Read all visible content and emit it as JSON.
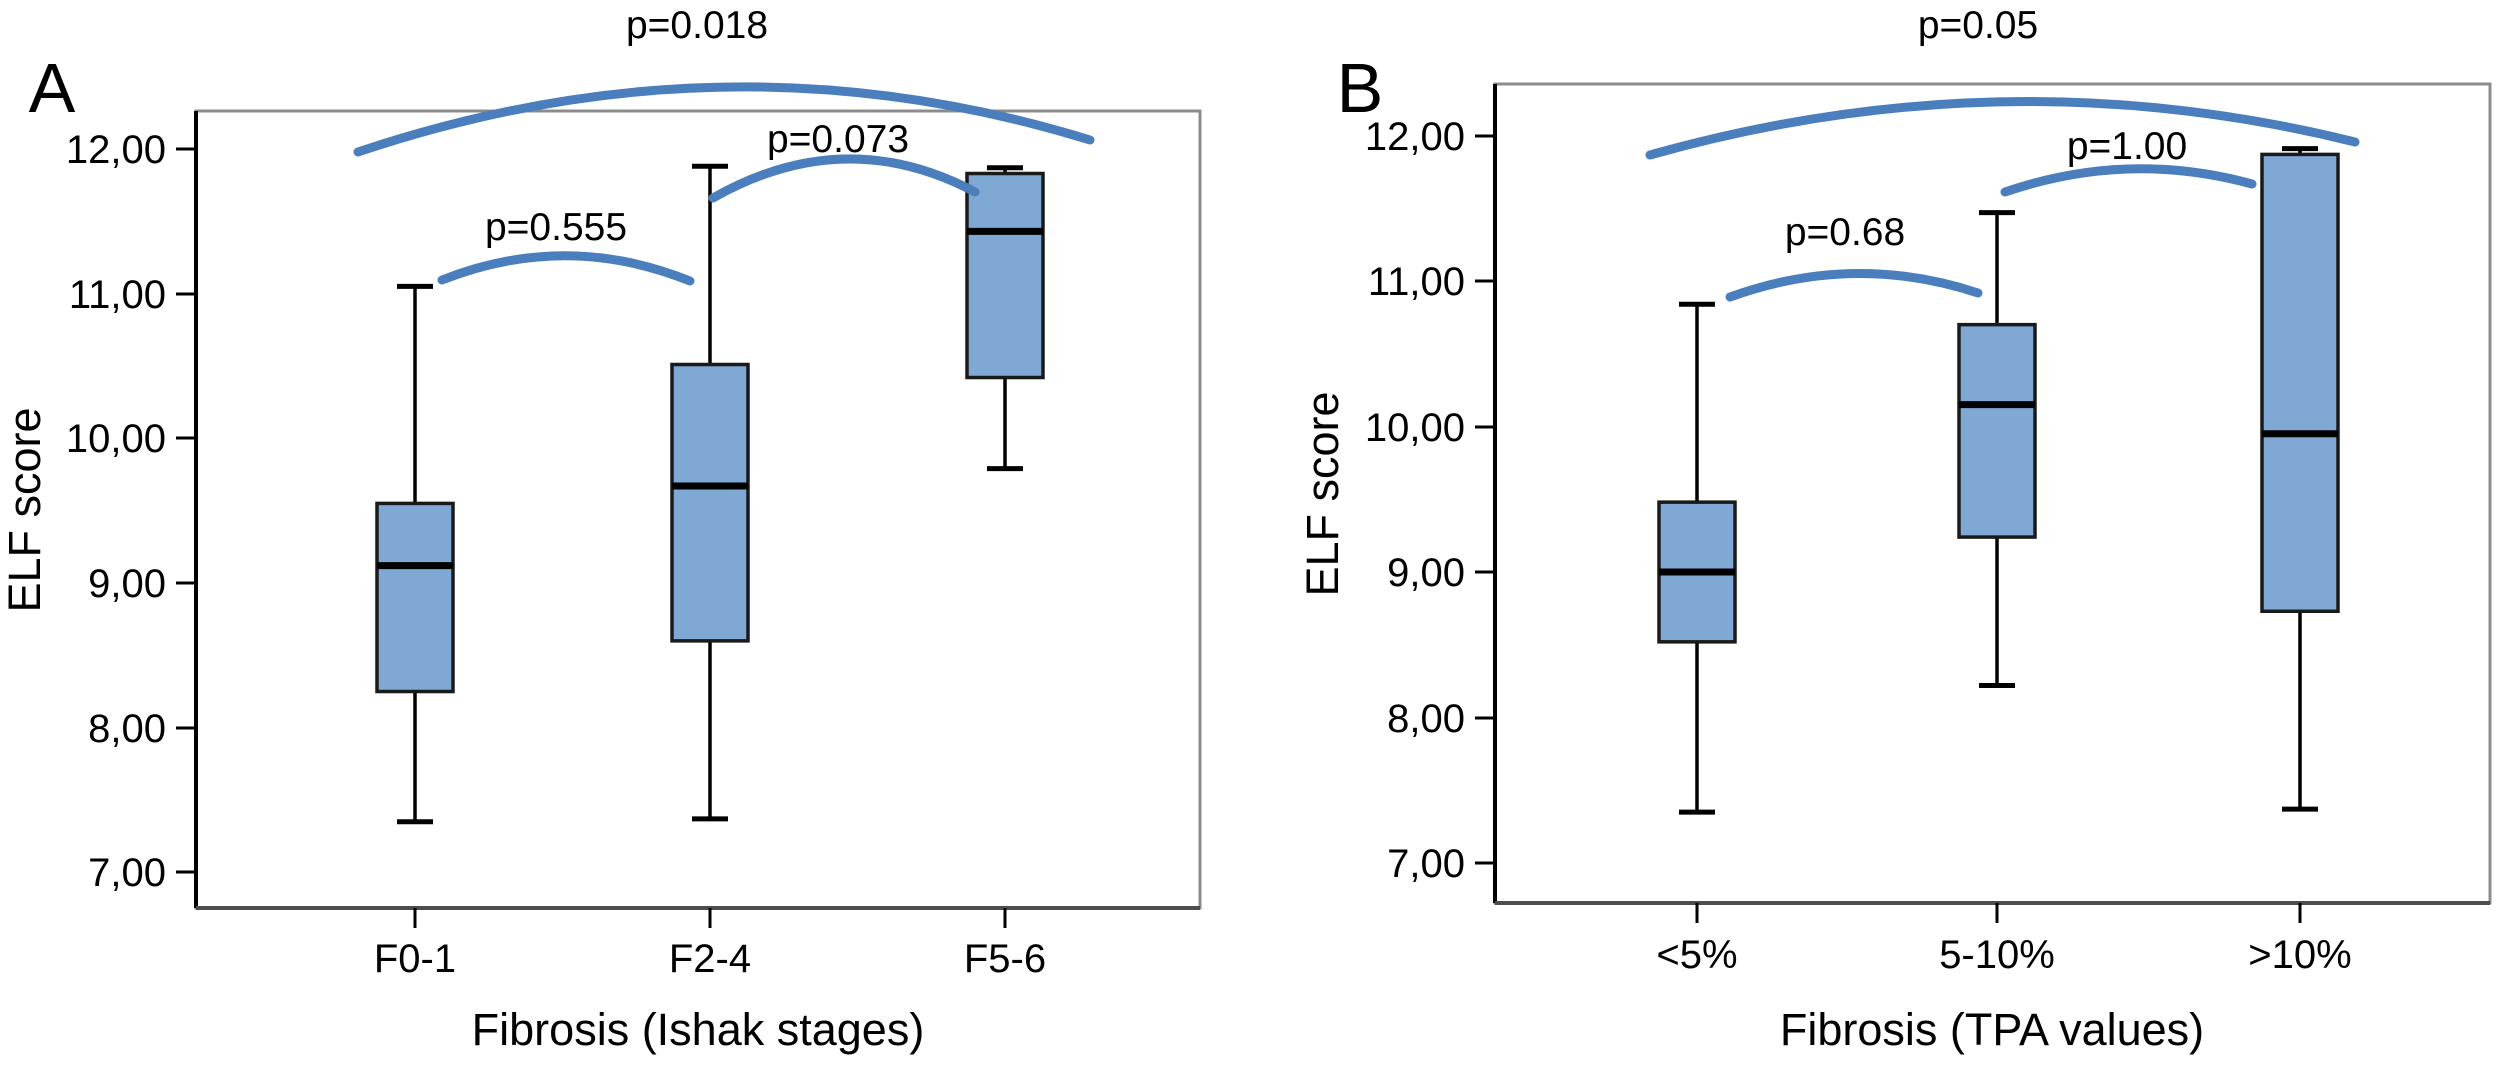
{
  "figure": {
    "background": "#ffffff",
    "colors": {
      "box_fill": "#7FA8D4",
      "box_border": "#1a1a1a",
      "median_line": "#000000",
      "bracket_blue": "#4B7EBD",
      "frame_gray": "#8c8c8c",
      "axis_black": "#000000"
    }
  },
  "chart_data": [
    {
      "type": "box",
      "panel_letter": "A",
      "overall_p": "p=0.018",
      "ylabel": "ELF score",
      "xlabel": "Fibrosis (Ishak stages)",
      "ylim": [
        6.6,
        12.45
      ],
      "yticks": [
        12,
        11,
        10,
        9,
        8,
        7
      ],
      "ytick_labels": [
        "12,00",
        "11,00",
        "10,00",
        "9,00",
        "8,00",
        "7,00"
      ],
      "categories": [
        "F0-1",
        "F2-4",
        "F5-6"
      ],
      "boxes": [
        {
          "category": "F0-1",
          "whisker_low": 7.35,
          "q1": 8.25,
          "median": 9.12,
          "q3": 9.55,
          "whisker_high": 11.05
        },
        {
          "category": "F2-4",
          "whisker_low": 7.37,
          "q1": 8.6,
          "median": 9.67,
          "q3": 10.51,
          "whisker_high": 11.88
        },
        {
          "category": "F5-6",
          "whisker_low": 9.79,
          "q1": 10.42,
          "median": 11.43,
          "q3": 11.83,
          "whisker_high": 11.87
        }
      ],
      "comparisons": [
        {
          "label": "p=0.018",
          "between": [
            "F0-1",
            "F5-6"
          ]
        },
        {
          "label": "p=0.555",
          "between": [
            "F0-1",
            "F2-4"
          ]
        },
        {
          "label": "p=0.073",
          "between": [
            "F2-4",
            "F5-6"
          ]
        }
      ],
      "legend": "none",
      "grid": false
    },
    {
      "type": "box",
      "panel_letter": "B",
      "overall_p": "p=0.05",
      "ylabel": "ELF score",
      "xlabel": "Fibrosis (TPA values)",
      "ylim": [
        6.6,
        12.45
      ],
      "yticks": [
        12,
        11,
        10,
        9,
        8,
        7
      ],
      "ytick_labels": [
        "12,00",
        "11,00",
        "10,00",
        "9,00",
        "8,00",
        "7,00"
      ],
      "categories": [
        "<5%",
        "5-10%",
        ">10%"
      ],
      "boxes": [
        {
          "category": "<5%",
          "whisker_low": 7.35,
          "q1": 8.52,
          "median": 9.0,
          "q3": 9.48,
          "whisker_high": 10.84
        },
        {
          "category": "5-10%",
          "whisker_low": 8.22,
          "q1": 9.24,
          "median": 10.15,
          "q3": 10.7,
          "whisker_high": 11.47
        },
        {
          "category": ">10%",
          "whisker_low": 7.37,
          "q1": 8.73,
          "median": 9.95,
          "q3": 11.87,
          "whisker_high": 11.91
        }
      ],
      "comparisons": [
        {
          "label": "p=0.05",
          "between": [
            "<5%",
            ">10%"
          ]
        },
        {
          "label": "p=0.68",
          "between": [
            "<5%",
            "5-10%"
          ]
        },
        {
          "label": "p=1.00",
          "between": [
            "5-10%",
            ">10%"
          ]
        }
      ],
      "legend": "none",
      "grid": false
    }
  ]
}
